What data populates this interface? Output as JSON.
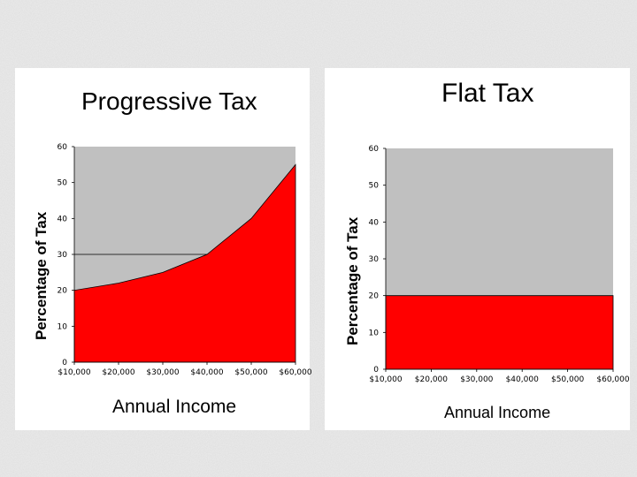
{
  "colors": {
    "filled": "#ff0000",
    "remainder": "#c0c0c0",
    "background": "#e9e9e9"
  },
  "chart_data": [
    {
      "type": "area",
      "title": "Progressive Tax",
      "xlabel": "Annual Income",
      "ylabel": "Percentage of Tax",
      "categories": [
        "$10,000",
        "$20,000",
        "$30,000",
        "$40,000",
        "$50,000",
        "$60,000"
      ],
      "x": [
        10000,
        20000,
        30000,
        40000,
        50000,
        60000
      ],
      "series": [
        {
          "values": [
            20,
            22,
            25,
            30,
            40,
            55
          ]
        }
      ],
      "reference_line": 30,
      "ylim": [
        0,
        60
      ],
      "yticks": [
        0,
        10,
        20,
        30,
        40,
        50,
        60
      ],
      "grid": false
    },
    {
      "type": "area",
      "title": "Flat Tax",
      "xlabel": "Annual Income",
      "ylabel": "Percentage of Tax",
      "categories": [
        "$10,000",
        "$20,000",
        "$30,000",
        "$40,000",
        "$50,000",
        "$60,000"
      ],
      "x": [
        10000,
        20000,
        30000,
        40000,
        50000,
        60000
      ],
      "series": [
        {
          "values": [
            20,
            20,
            20,
            20,
            20,
            20
          ]
        }
      ],
      "ylim": [
        0,
        60
      ],
      "yticks": [
        0,
        10,
        20,
        30,
        40,
        50,
        60
      ],
      "grid": false
    }
  ]
}
